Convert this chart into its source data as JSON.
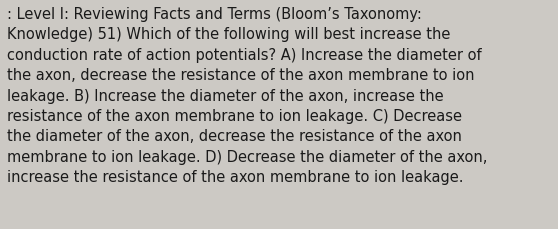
{
  "background_color": "#ccc9c4",
  "text_color": "#1a1a1a",
  "font_size": 10.5,
  "font_family": "DejaVu Sans",
  "lines": [
    ": Level I: Reviewing Facts and Terms (Bloom’s Taxonomy:",
    "Knowledge) 51) Which of the following will best increase the",
    "conduction rate of action potentials? A) Increase the diameter of",
    "the axon, decrease the resistance of the axon membrane to ion",
    "leakage. B) Increase the diameter of the axon, increase the",
    "resistance of the axon membrane to ion leakage. C) Decrease",
    "the diameter of the axon, decrease the resistance of the axon",
    "membrane to ion leakage. D) Decrease the diameter of the axon,",
    "increase the resistance of the axon membrane to ion leakage."
  ],
  "figwidth": 5.58,
  "figheight": 2.3,
  "dpi": 100
}
